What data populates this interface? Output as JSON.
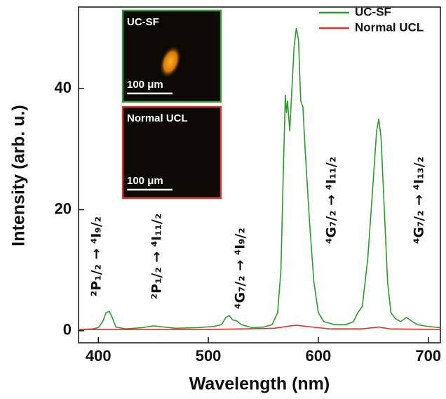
{
  "chart_data": {
    "type": "line",
    "x_label": "Wavelength (nm)",
    "y_label": "Intensity (arb. u.)",
    "xlim": [
      382,
      711
    ],
    "ylim": [
      -2,
      53.5
    ],
    "xticks": [
      400,
      500,
      600,
      700
    ],
    "yticks": [
      0,
      20,
      40
    ],
    "legend": "upper right",
    "series": [
      {
        "name": "UC-SF",
        "color": "#2e9b2e",
        "x": [
          382,
          395,
          400,
          404,
          407,
          410,
          413,
          416,
          425,
          440,
          450,
          460,
          470,
          490,
          505,
          512,
          516,
          519,
          522,
          526,
          530,
          540,
          550,
          558,
          563,
          566,
          568,
          570,
          571,
          572,
          574,
          576,
          578,
          580,
          582,
          584,
          586,
          588,
          592,
          596,
          600,
          605,
          615,
          625,
          632,
          636,
          640,
          645,
          650,
          653,
          655,
          657,
          660,
          663,
          666,
          670,
          675,
          680,
          683,
          690,
          700,
          711
        ],
        "values": [
          0.2,
          0.3,
          0.5,
          1.5,
          3.0,
          3.2,
          2.0,
          0.6,
          0.3,
          0.5,
          0.8,
          0.6,
          0.4,
          0.5,
          0.7,
          1.0,
          2.2,
          2.5,
          1.8,
          1.6,
          1.0,
          0.5,
          0.6,
          1.0,
          3,
          10,
          25,
          39,
          36,
          38,
          33,
          40,
          47,
          50,
          48,
          38,
          37,
          30,
          18,
          8,
          3,
          1.5,
          1.0,
          1.0,
          1.5,
          3,
          4,
          12,
          25,
          33,
          35,
          32,
          20,
          8,
          3,
          2.0,
          1.5,
          2.2,
          1.8,
          1.0,
          0.7,
          0.5
        ]
      },
      {
        "name": "Normal UCL",
        "color": "#e8302a",
        "x": [
          382,
          500,
          560,
          575,
          580,
          590,
          610,
          640,
          655,
          665,
          711
        ],
        "values": [
          0.2,
          0.2,
          0.4,
          0.8,
          0.9,
          0.7,
          0.3,
          0.3,
          0.6,
          0.3,
          0.2
        ]
      }
    ],
    "annotations": [
      "²P₁/₂ → ⁴I₉/₂",
      "²P₁/₂ → ⁴I₁₁/₂",
      "⁴G₇/₂ → ⁴I₉/₂",
      "⁴G₇/₂ → ⁴I₁₁/₂",
      "⁴G₇/₂ → ⁴I₁₃/₂"
    ],
    "insets": [
      {
        "label": "UC-SF",
        "scale": "100 μm"
      },
      {
        "label": "Normal UCL",
        "scale": "100 μm"
      }
    ]
  }
}
